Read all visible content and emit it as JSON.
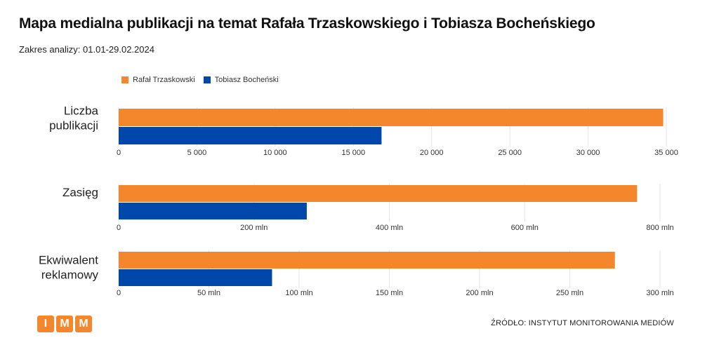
{
  "title": "Mapa medialna publikacji na temat Rafała Trzaskowskiego i Tobiasza Bocheńskiego",
  "subtitle": "Zakres analizy: 01.01-29.02.2024",
  "legend": [
    {
      "name": "Rafał Trzaskowski",
      "color": "#f4862c"
    },
    {
      "name": "Tobiasz Bocheński",
      "color": "#0047ab"
    }
  ],
  "source": "ŹRÓDŁO: INSTYTUT MONITOROWANIA MEDIÓW",
  "logo": [
    "I",
    "M",
    "M"
  ],
  "chart_data": [
    {
      "type": "bar",
      "category": [
        "Liczba",
        "publikacji"
      ],
      "series": [
        {
          "name": "Rafał Trzaskowski",
          "values": [
            34800
          ]
        },
        {
          "name": "Tobiasz Bocheński",
          "values": [
            16800
          ]
        }
      ],
      "xlim": [
        0,
        35000
      ],
      "ticks": [
        0,
        5000,
        10000,
        15000,
        20000,
        25000,
        30000,
        35000
      ],
      "tick_labels": [
        "0",
        "5 000",
        "10 000",
        "15 000",
        "20 000",
        "25 000",
        "30 000",
        "35 000"
      ]
    },
    {
      "type": "bar",
      "category": [
        "Zasięg"
      ],
      "series": [
        {
          "name": "Rafał Trzaskowski",
          "values": [
            766
          ]
        },
        {
          "name": "Tobiasz Bocheński",
          "values": [
            278
          ]
        }
      ],
      "xlim": [
        0,
        800
      ],
      "ticks": [
        0,
        200,
        400,
        600,
        800
      ],
      "tick_labels": [
        "0",
        "200 mln",
        "400 mln",
        "600 mln",
        "800 mln"
      ]
    },
    {
      "type": "bar",
      "category": [
        "Ekwiwalent",
        "reklamowy"
      ],
      "series": [
        {
          "name": "Rafał Trzaskowski",
          "values": [
            275
          ]
        },
        {
          "name": "Tobiasz Bocheński",
          "values": [
            85
          ]
        }
      ],
      "xlim": [
        0,
        300
      ],
      "ticks": [
        0,
        50,
        100,
        150,
        200,
        250,
        300
      ],
      "tick_labels": [
        "0",
        "50 mln",
        "100 mln",
        "150 mln",
        "200 mln",
        "250 mln",
        "300 mln"
      ]
    }
  ]
}
